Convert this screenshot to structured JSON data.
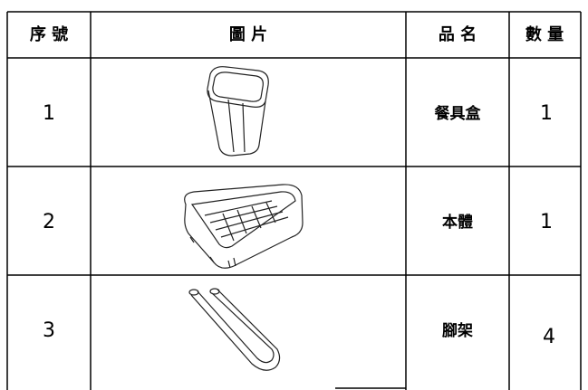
{
  "table": {
    "header": [
      "序 號",
      "圖 片",
      "品 名",
      "數 量"
    ],
    "rows": [
      [
        "1",
        "餐具盒",
        "1"
      ],
      [
        "2",
        "本體",
        "1"
      ],
      [
        "3",
        "腳架",
        "4"
      ]
    ]
  }
}
